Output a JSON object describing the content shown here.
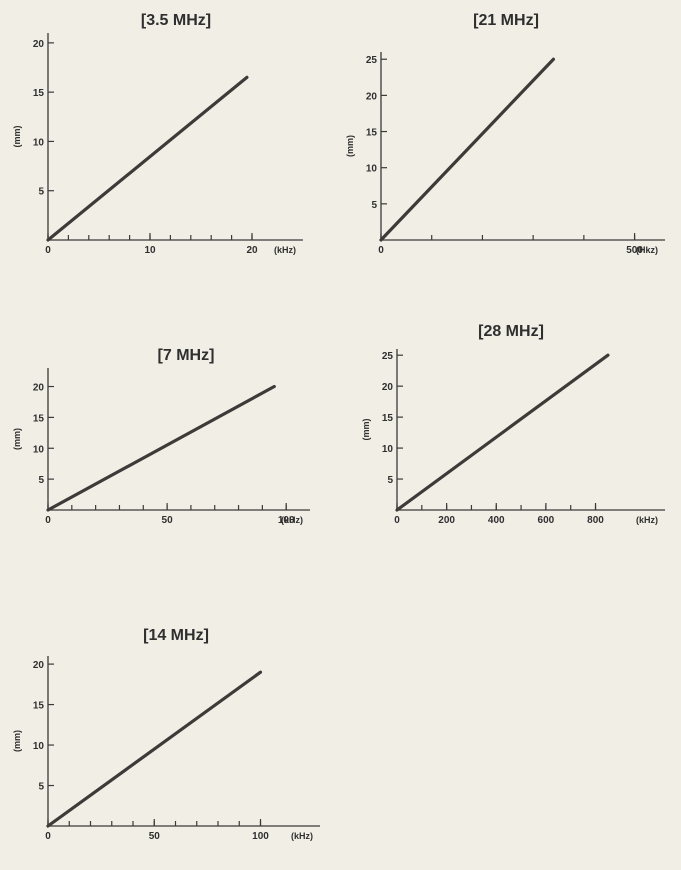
{
  "colors": {
    "background": "#f1eee6",
    "ink": "#3d3a38"
  },
  "chart_data": [
    {
      "type": "line",
      "title": "[3.5 MHz]",
      "xlabel": "(kHz)",
      "ylabel": "(mm)",
      "xlim": [
        0,
        25
      ],
      "ylim": [
        0,
        21
      ],
      "x_ticks": [
        0,
        10,
        20
      ],
      "x_ticks_minor": [
        0,
        2,
        4,
        6,
        8,
        10,
        12,
        14,
        16,
        18,
        20
      ],
      "y_ticks": [
        5,
        10,
        15,
        20
      ],
      "series": [
        {
          "x": [
            0,
            19.5
          ],
          "y": [
            0,
            16.5
          ]
        }
      ]
    },
    {
      "type": "line",
      "title": "[21 MHz]",
      "xlabel": "(Hkz)",
      "ylabel": "(mm)",
      "xlim": [
        0,
        560
      ],
      "ylim": [
        0,
        26
      ],
      "x_ticks": [
        0,
        500
      ],
      "x_ticks_minor": [
        0,
        100,
        200,
        300,
        400,
        500
      ],
      "y_ticks": [
        5,
        10,
        15,
        20,
        25
      ],
      "series": [
        {
          "x": [
            0,
            340
          ],
          "y": [
            0,
            25
          ]
        }
      ]
    },
    {
      "type": "line",
      "title": "[7 MHz]",
      "xlabel": "(kHz)",
      "ylabel": "(mm)",
      "xlim": [
        0,
        110
      ],
      "ylim": [
        0,
        23
      ],
      "x_ticks": [
        0,
        50,
        100
      ],
      "x_ticks_minor": [
        0,
        10,
        20,
        30,
        40,
        50,
        60,
        70,
        80,
        90,
        100
      ],
      "y_ticks": [
        5,
        10,
        15,
        20
      ],
      "series": [
        {
          "x": [
            0,
            95
          ],
          "y": [
            0,
            20
          ]
        }
      ]
    },
    {
      "type": "line",
      "title": "[28 MHz]",
      "xlabel": "(kHz)",
      "ylabel": "(mm)",
      "xlim": [
        0,
        1080
      ],
      "ylim": [
        0,
        26
      ],
      "x_ticks": [
        0,
        200,
        400,
        600,
        800
      ],
      "x_ticks_minor": [
        0,
        100,
        200,
        300,
        400,
        500,
        600,
        700,
        800
      ],
      "y_ticks": [
        5,
        10,
        15,
        20,
        25
      ],
      "series": [
        {
          "x": [
            0,
            850
          ],
          "y": [
            0,
            25
          ]
        }
      ]
    },
    {
      "type": "line",
      "title": "[14 MHz]",
      "xlabel": "(kHz)",
      "ylabel": "(mm)",
      "xlim": [
        0,
        128
      ],
      "ylim": [
        0,
        21
      ],
      "x_ticks": [
        0,
        50,
        100
      ],
      "x_ticks_minor": [
        0,
        10,
        20,
        30,
        40,
        50,
        60,
        70,
        80,
        90,
        100
      ],
      "y_ticks": [
        5,
        10,
        15,
        20
      ],
      "series": [
        {
          "x": [
            0,
            100
          ],
          "y": [
            0,
            19
          ]
        }
      ]
    }
  ]
}
